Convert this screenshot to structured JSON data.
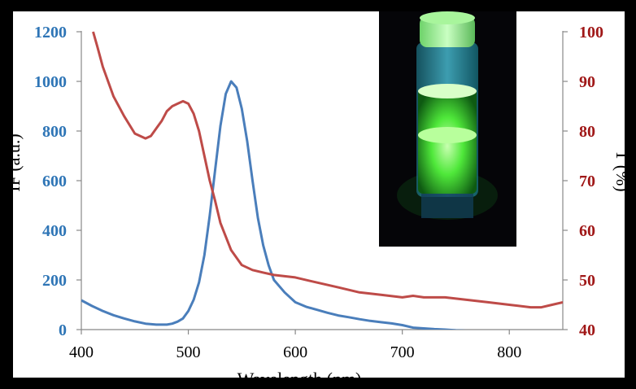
{
  "chart_data": {
    "type": "line",
    "title": "",
    "xlabel": "Wavelength (nm)",
    "ylabel_left": "IF (a.u.)",
    "ylabel_right": "T (%)",
    "xlim": [
      400,
      850
    ],
    "ylim_left": [
      0,
      1200
    ],
    "ylim_right": [
      40,
      100
    ],
    "x_ticks": [
      400,
      500,
      600,
      700,
      800
    ],
    "y_ticks_left": [
      0,
      200,
      400,
      600,
      800,
      1000,
      1200
    ],
    "y_ticks_right": [
      40,
      50,
      60,
      70,
      80,
      90,
      100
    ],
    "grid": false,
    "colors": {
      "fluorescence": "#4a7ebb",
      "transmittance": "#be4b48",
      "left_axis_ticks": "#2e75b6",
      "right_axis_ticks": "#a01818"
    },
    "series": [
      {
        "axis": "left",
        "color": "#4a7ebb",
        "x": [
          400,
          410,
          420,
          430,
          440,
          450,
          460,
          470,
          480,
          485,
          490,
          495,
          500,
          505,
          510,
          515,
          520,
          525,
          530,
          535,
          540,
          545,
          550,
          555,
          560,
          565,
          570,
          575,
          580,
          590,
          600,
          610,
          620,
          630,
          640,
          650,
          660,
          670,
          680,
          690,
          700,
          710,
          720,
          730,
          740,
          750,
          760,
          770,
          780,
          790,
          800,
          810,
          820,
          830,
          840,
          850
        ],
        "y": [
          118,
          95,
          75,
          58,
          45,
          33,
          24,
          20,
          20,
          24,
          32,
          45,
          75,
          120,
          190,
          300,
          460,
          640,
          820,
          950,
          1000,
          975,
          890,
          760,
          600,
          450,
          340,
          260,
          200,
          150,
          110,
          92,
          80,
          68,
          57,
          50,
          42,
          35,
          30,
          25,
          18,
          8,
          5,
          2,
          0,
          -3,
          -5,
          -8,
          -10,
          -12,
          -14,
          -16,
          -18,
          -20,
          -22,
          -24
        ]
      },
      {
        "axis": "right",
        "color": "#be4b48",
        "x": [
          411,
          415,
          420,
          425,
          430,
          440,
          450,
          460,
          465,
          470,
          475,
          480,
          485,
          490,
          495,
          500,
          505,
          510,
          515,
          520,
          525,
          530,
          540,
          550,
          560,
          570,
          580,
          600,
          620,
          640,
          660,
          680,
          700,
          710,
          720,
          740,
          760,
          780,
          800,
          820,
          830,
          840,
          850
        ],
        "y": [
          100,
          97,
          93,
          90,
          87,
          83,
          79.5,
          78.5,
          79,
          80.5,
          82,
          84,
          85,
          85.5,
          86,
          85.5,
          83.5,
          80,
          75,
          70,
          66,
          61.5,
          56,
          53,
          52,
          51.5,
          51,
          50.5,
          49.5,
          48.5,
          47.5,
          47,
          46.5,
          46.8,
          46.5,
          46.5,
          46,
          45.5,
          45,
          44.5,
          44.5,
          45,
          45.5
        ]
      }
    ]
  }
}
